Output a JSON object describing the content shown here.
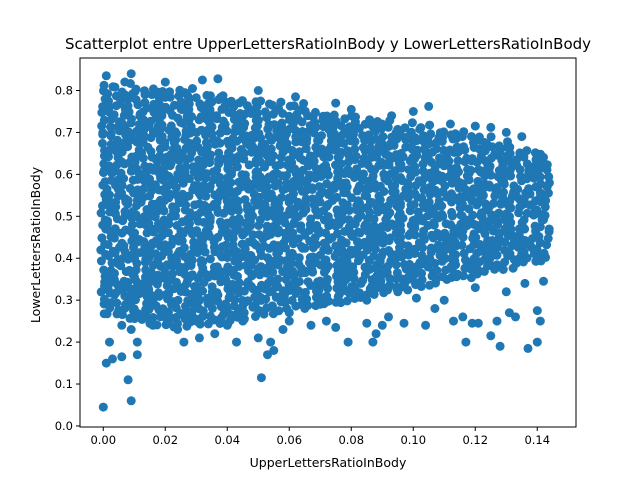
{
  "chart_data": {
    "type": "scatter",
    "title": "Scatterplot entre UpperLettersRatioInBody y LowerLettersRatioInBody",
    "xlabel": "UpperLettersRatioInBody",
    "ylabel": "LowerLettersRatioInBody",
    "xlim": [
      -0.0075,
      0.1525
    ],
    "ylim": [
      -0.0025,
      0.8775
    ],
    "xticks": [
      0.0,
      0.02,
      0.04,
      0.06,
      0.08,
      0.1,
      0.12,
      0.14
    ],
    "xtick_labels": [
      "0.00",
      "0.02",
      "0.04",
      "0.06",
      "0.08",
      "0.10",
      "0.12",
      "0.14"
    ],
    "yticks": [
      0.0,
      0.1,
      0.2,
      0.3,
      0.4,
      0.5,
      0.6,
      0.7,
      0.8
    ],
    "ytick_labels": [
      "0.0",
      "0.1",
      "0.2",
      "0.3",
      "0.4",
      "0.5",
      "0.6",
      "0.7",
      "0.8"
    ],
    "grid": false,
    "legend": "none",
    "series_color": "#1f77b4",
    "band": {
      "x": [
        0.0,
        0.02,
        0.04,
        0.06,
        0.08,
        0.1,
        0.12,
        0.143
      ],
      "upper": [
        0.82,
        0.81,
        0.79,
        0.77,
        0.74,
        0.72,
        0.7,
        0.65
      ],
      "lower": [
        0.27,
        0.24,
        0.25,
        0.28,
        0.3,
        0.33,
        0.36,
        0.4
      ]
    },
    "points": [
      [
        0.0,
        0.045
      ],
      [
        0.009,
        0.06
      ],
      [
        0.008,
        0.11
      ],
      [
        0.001,
        0.15
      ],
      [
        0.003,
        0.16
      ],
      [
        0.006,
        0.165
      ],
      [
        0.011,
        0.17
      ],
      [
        0.002,
        0.2
      ],
      [
        0.051,
        0.115
      ],
      [
        0.053,
        0.17
      ],
      [
        0.055,
        0.18
      ],
      [
        0.05,
        0.21
      ],
      [
        0.054,
        0.2
      ],
      [
        0.043,
        0.2
      ],
      [
        0.036,
        0.22
      ],
      [
        0.031,
        0.21
      ],
      [
        0.026,
        0.2
      ],
      [
        0.024,
        0.23
      ],
      [
        0.021,
        0.25
      ],
      [
        0.016,
        0.24
      ],
      [
        0.014,
        0.26
      ],
      [
        0.011,
        0.2
      ],
      [
        0.006,
        0.24
      ],
      [
        0.009,
        0.23
      ],
      [
        0.03,
        0.25
      ],
      [
        0.04,
        0.24
      ],
      [
        0.045,
        0.25
      ],
      [
        0.058,
        0.23
      ],
      [
        0.06,
        0.25
      ],
      [
        0.065,
        0.28
      ],
      [
        0.067,
        0.24
      ],
      [
        0.072,
        0.25
      ],
      [
        0.075,
        0.235
      ],
      [
        0.079,
        0.2
      ],
      [
        0.085,
        0.245
      ],
      [
        0.087,
        0.2
      ],
      [
        0.088,
        0.22
      ],
      [
        0.09,
        0.24
      ],
      [
        0.092,
        0.26
      ],
      [
        0.097,
        0.245
      ],
      [
        0.104,
        0.24
      ],
      [
        0.107,
        0.28
      ],
      [
        0.113,
        0.25
      ],
      [
        0.116,
        0.26
      ],
      [
        0.117,
        0.2
      ],
      [
        0.119,
        0.245
      ],
      [
        0.121,
        0.245
      ],
      [
        0.125,
        0.215
      ],
      [
        0.127,
        0.25
      ],
      [
        0.128,
        0.19
      ],
      [
        0.131,
        0.27
      ],
      [
        0.133,
        0.26
      ],
      [
        0.137,
        0.185
      ],
      [
        0.14,
        0.2
      ],
      [
        0.141,
        0.25
      ],
      [
        0.14,
        0.275
      ],
      [
        0.001,
        0.835
      ],
      [
        0.009,
        0.84
      ],
      [
        0.02,
        0.82
      ],
      [
        0.032,
        0.825
      ],
      [
        0.037,
        0.828
      ],
      [
        0.05,
        0.8
      ],
      [
        0.062,
        0.785
      ],
      [
        0.075,
        0.77
      ],
      [
        0.08,
        0.755
      ],
      [
        0.093,
        0.74
      ],
      [
        0.1,
        0.75
      ],
      [
        0.105,
        0.762
      ],
      [
        0.112,
        0.72
      ],
      [
        0.12,
        0.715
      ],
      [
        0.125,
        0.712
      ],
      [
        0.13,
        0.7
      ],
      [
        0.135,
        0.69
      ],
      [
        0.101,
        0.305
      ],
      [
        0.11,
        0.3
      ],
      [
        0.12,
        0.33
      ],
      [
        0.13,
        0.32
      ],
      [
        0.136,
        0.34
      ],
      [
        0.142,
        0.345
      ],
      [
        0.095,
        0.32
      ],
      [
        0.085,
        0.3
      ],
      [
        0.07,
        0.29
      ],
      [
        0.06,
        0.27
      ],
      [
        0.045,
        0.27
      ]
    ]
  }
}
